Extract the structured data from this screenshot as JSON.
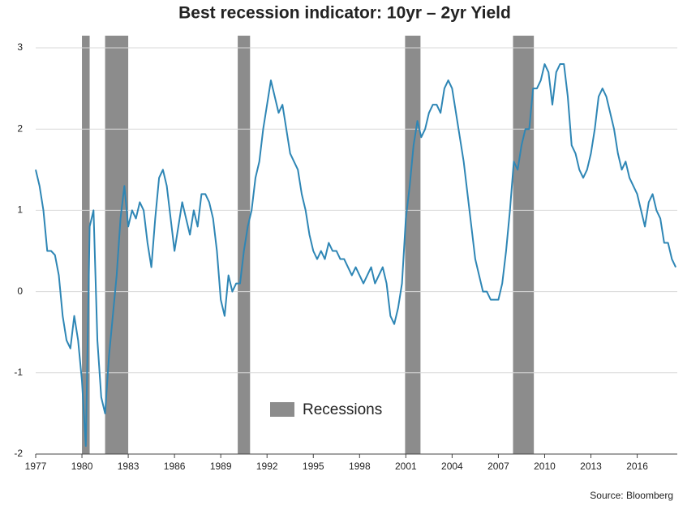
{
  "chart_data": {
    "type": "line",
    "title": "Best recession indicator: 10yr – 2yr Yield",
    "source": "Source: Bloomberg",
    "shade_label": "Recessions",
    "shade_color": "#8c8c8c",
    "shaded_periods": [
      [
        1980.0,
        1980.5
      ],
      [
        1981.5,
        1983.0
      ],
      [
        1990.1,
        1990.9
      ],
      [
        2000.95,
        2001.95
      ],
      [
        2007.95,
        2009.3
      ]
    ],
    "x": [
      1977,
      1977.25,
      1977.5,
      1977.75,
      1978,
      1978.25,
      1978.5,
      1978.75,
      1979,
      1979.25,
      1979.5,
      1979.75,
      1980,
      1980.25,
      1980.5,
      1980.75,
      1981,
      1981.25,
      1981.5,
      1981.75,
      1982,
      1982.25,
      1982.5,
      1982.75,
      1983,
      1983.25,
      1983.5,
      1983.75,
      1984,
      1984.25,
      1984.5,
      1984.75,
      1985,
      1985.25,
      1985.5,
      1985.75,
      1986,
      1986.25,
      1986.5,
      1986.75,
      1987,
      1987.25,
      1987.5,
      1987.75,
      1988,
      1988.25,
      1988.5,
      1988.75,
      1989,
      1989.25,
      1989.5,
      1989.75,
      1990,
      1990.25,
      1990.5,
      1990.75,
      1991,
      1991.25,
      1991.5,
      1991.75,
      1992,
      1992.25,
      1992.5,
      1992.75,
      1993,
      1993.25,
      1993.5,
      1993.75,
      1994,
      1994.25,
      1994.5,
      1994.75,
      1995,
      1995.25,
      1995.5,
      1995.75,
      1996,
      1996.25,
      1996.5,
      1996.75,
      1997,
      1997.25,
      1997.5,
      1997.75,
      1998,
      1998.25,
      1998.5,
      1998.75,
      1999,
      1999.25,
      1999.5,
      1999.75,
      2000,
      2000.25,
      2000.5,
      2000.75,
      2001,
      2001.25,
      2001.5,
      2001.75,
      2002,
      2002.25,
      2002.5,
      2002.75,
      2003,
      2003.25,
      2003.5,
      2003.75,
      2004,
      2004.25,
      2004.5,
      2004.75,
      2005,
      2005.25,
      2005.5,
      2005.75,
      2006,
      2006.25,
      2006.5,
      2006.75,
      2007,
      2007.25,
      2007.5,
      2007.75,
      2008,
      2008.25,
      2008.5,
      2008.75,
      2009,
      2009.25,
      2009.5,
      2009.75,
      2010,
      2010.25,
      2010.5,
      2010.75,
      2011,
      2011.25,
      2011.5,
      2011.75,
      2012,
      2012.25,
      2012.5,
      2012.75,
      2013,
      2013.25,
      2013.5,
      2013.75,
      2014,
      2014.25,
      2014.5,
      2014.75,
      2015,
      2015.25,
      2015.5,
      2015.75,
      2016,
      2016.25,
      2016.5,
      2016.75,
      2017,
      2017.25,
      2017.5,
      2017.75,
      2018,
      2018.25,
      2018.5
    ],
    "series": [
      {
        "name": "10yr – 2yr Yield",
        "color": "#2e86b5",
        "values": [
          1.5,
          1.3,
          1.0,
          0.5,
          0.5,
          0.45,
          0.2,
          -0.3,
          -0.6,
          -0.7,
          -0.3,
          -0.6,
          -1.1,
          -1.9,
          0.8,
          1.0,
          -0.6,
          -1.3,
          -1.5,
          -0.8,
          -0.3,
          0.2,
          0.9,
          1.3,
          0.8,
          1.0,
          0.9,
          1.1,
          1.0,
          0.6,
          0.3,
          0.9,
          1.4,
          1.5,
          1.3,
          0.9,
          0.5,
          0.8,
          1.1,
          0.9,
          0.7,
          1.0,
          0.8,
          1.2,
          1.2,
          1.1,
          0.9,
          0.5,
          -0.1,
          -0.3,
          0.2,
          0.0,
          0.1,
          0.1,
          0.5,
          0.8,
          1.0,
          1.4,
          1.6,
          2.0,
          2.3,
          2.6,
          2.4,
          2.2,
          2.3,
          2.0,
          1.7,
          1.6,
          1.5,
          1.2,
          1.0,
          0.7,
          0.5,
          0.4,
          0.5,
          0.4,
          0.6,
          0.5,
          0.5,
          0.4,
          0.4,
          0.3,
          0.2,
          0.3,
          0.2,
          0.1,
          0.2,
          0.3,
          0.1,
          0.2,
          0.3,
          0.1,
          -0.3,
          -0.4,
          -0.2,
          0.1,
          0.9,
          1.3,
          1.8,
          2.1,
          1.9,
          2.0,
          2.2,
          2.3,
          2.3,
          2.2,
          2.5,
          2.6,
          2.5,
          2.2,
          1.9,
          1.6,
          1.2,
          0.8,
          0.4,
          0.2,
          0.0,
          0.0,
          -0.1,
          -0.1,
          -0.1,
          0.1,
          0.5,
          1.0,
          1.6,
          1.5,
          1.8,
          2.0,
          2.0,
          2.5,
          2.5,
          2.6,
          2.8,
          2.7,
          2.3,
          2.7,
          2.8,
          2.8,
          2.4,
          1.8,
          1.7,
          1.5,
          1.4,
          1.5,
          1.7,
          2.0,
          2.4,
          2.5,
          2.4,
          2.2,
          2.0,
          1.7,
          1.5,
          1.6,
          1.4,
          1.3,
          1.2,
          1.0,
          0.8,
          1.1,
          1.2,
          1.0,
          0.9,
          0.6,
          0.6,
          0.4,
          0.3
        ]
      }
    ],
    "xlim": [
      1977,
      2018.6
    ],
    "ylim": [
      -2,
      3
    ],
    "xticks": [
      1977,
      1980,
      1983,
      1986,
      1989,
      1992,
      1995,
      1998,
      2001,
      2004,
      2007,
      2010,
      2013,
      2016
    ],
    "yticks": [
      -2,
      -1,
      0,
      1,
      2,
      3
    ],
    "grid": true
  }
}
